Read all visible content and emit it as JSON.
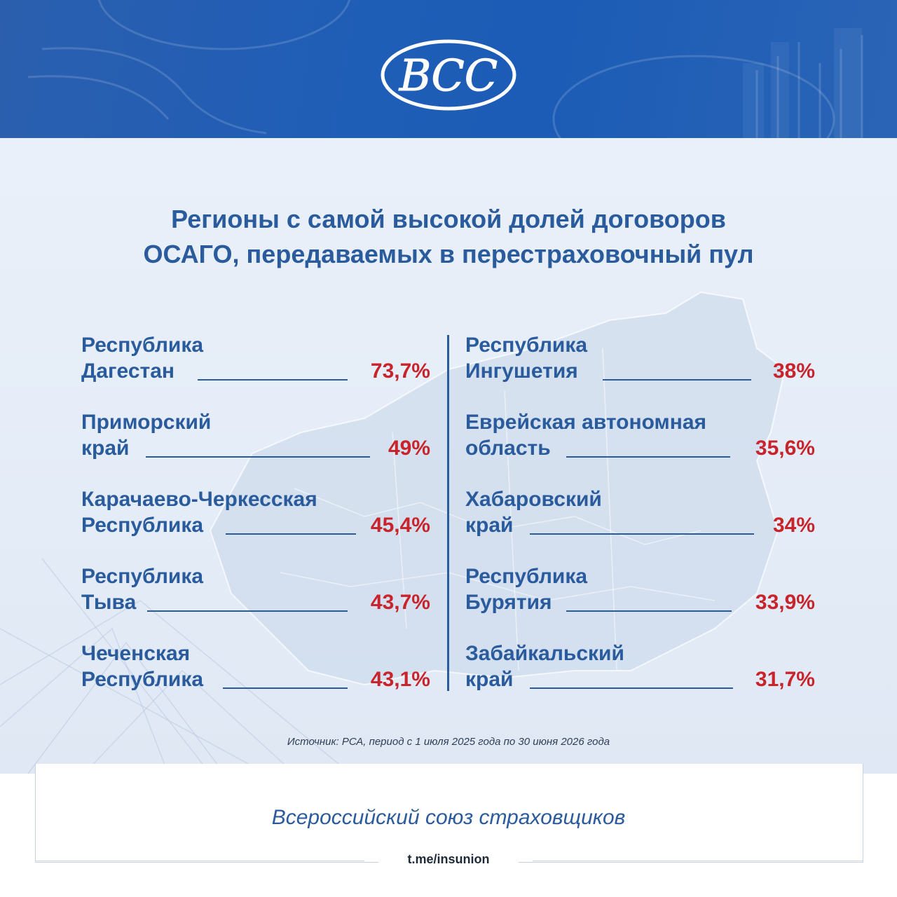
{
  "header": {
    "logo_text": "ВСС"
  },
  "title": {
    "line1": "Регионы с самой высокой долей договоров",
    "line2": "ОСАГО, передаваемых в перестраховочный пул"
  },
  "left_column": [
    {
      "name_line1": "Республика",
      "name_line2": "Дагестан",
      "value": "73,7%"
    },
    {
      "name_line1": "Приморский",
      "name_line2": "край",
      "value": "49%"
    },
    {
      "name_line1": "Карачаево-Черкесская",
      "name_line2": "Республика",
      "value": "45,4%"
    },
    {
      "name_line1": "Республика",
      "name_line2": "Тыва",
      "value": "43,7%"
    },
    {
      "name_line1": "Чеченская",
      "name_line2": "Республика",
      "value": "43,1%"
    }
  ],
  "right_column": [
    {
      "name_line1": "Республика",
      "name_line2": "Ингушетия",
      "value": "38%"
    },
    {
      "name_line1": "Еврейская автономная",
      "name_line2": "область",
      "value": "35,6%"
    },
    {
      "name_line1": "Хабаровский",
      "name_line2": "край",
      "value": "34%"
    },
    {
      "name_line1": "Республика",
      "name_line2": "Бурятия",
      "value": "33,9%"
    },
    {
      "name_line1": "Забайкальский",
      "name_line2": "край",
      "value": "31,7%"
    }
  ],
  "source": "Источник: РСА, период с 1 июля 2025 года по 30 июня 2026 года",
  "footer": {
    "organization": "Всероссийский союз страховщиков",
    "link": "t.me/insunion"
  },
  "colors": {
    "brand_blue": "#2a5b9c",
    "value_red": "#c8242c",
    "banner_blue": "#1f5eb7"
  }
}
